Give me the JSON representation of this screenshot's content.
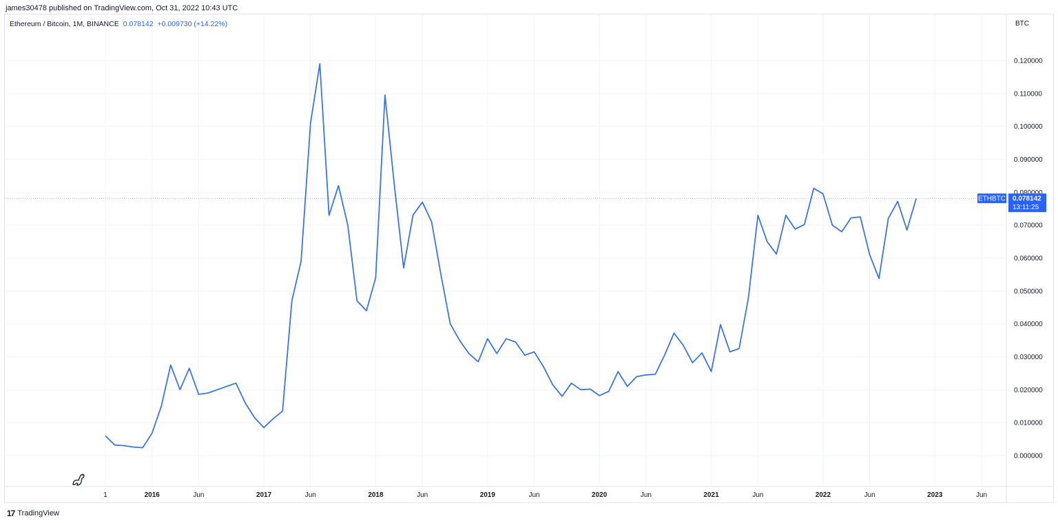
{
  "header": {
    "published_line": "james30478 published on TradingView.com, Oct 31, 2022 10:43 UTC"
  },
  "legend": {
    "symbol": "Ethereum / Bitcoin, 1M, BINANCE",
    "last_value": "0.078142",
    "change": "+0.009730 (+14.22%)"
  },
  "footer": {
    "logo_mark": "17",
    "brand": "TradingView"
  },
  "colors": {
    "line": "#3a74e0",
    "badge": "#2962ff",
    "grid": "#f0f3fa"
  },
  "chart_data": {
    "type": "line",
    "currency_label": "BTC",
    "ylim": [
      -0.009,
      0.128
    ],
    "y_ticks": [
      0,
      0.01,
      0.02,
      0.03,
      0.04,
      0.05,
      0.06,
      0.07,
      0.08,
      0.09,
      0.1,
      0.11,
      0.12
    ],
    "y_tick_labels": [
      "0.000000",
      "0.010000",
      "0.020000",
      "0.030000",
      "0.040000",
      "0.050000",
      "0.060000",
      "0.070000",
      "0.080000",
      "0.090000",
      "0.100000",
      "0.110000",
      "0.120000"
    ],
    "x_ticks": [
      {
        "label": "1",
        "month": 2015.583
      },
      {
        "label": "2016",
        "month": 2016.0
      },
      {
        "label": "Jun",
        "month": 2016.417
      },
      {
        "label": "2017",
        "month": 2017.0
      },
      {
        "label": "Jun",
        "month": 2017.417
      },
      {
        "label": "2018",
        "month": 2018.0
      },
      {
        "label": "Jun",
        "month": 2018.417
      },
      {
        "label": "2019",
        "month": 2019.0
      },
      {
        "label": "Jun",
        "month": 2019.417
      },
      {
        "label": "2020",
        "month": 2020.0
      },
      {
        "label": "Jun",
        "month": 2020.417
      },
      {
        "label": "2021",
        "month": 2021.0
      },
      {
        "label": "Jun",
        "month": 2021.417
      },
      {
        "label": "2022",
        "month": 2022.0
      },
      {
        "label": "Jun",
        "month": 2022.417
      },
      {
        "label": "2023",
        "month": 2023.0
      },
      {
        "label": "Jun",
        "month": 2023.417
      }
    ],
    "series": [
      {
        "x": [
          2015.583,
          2015.667,
          2015.75,
          2015.833,
          2015.917,
          2016.0,
          2016.083,
          2016.167,
          2016.25,
          2016.333,
          2016.417,
          2016.5,
          2016.583,
          2016.667,
          2016.75,
          2016.833,
          2016.917,
          2017.0,
          2017.083,
          2017.167,
          2017.25,
          2017.333,
          2017.417,
          2017.5,
          2017.583,
          2017.667,
          2017.75,
          2017.833,
          2017.917,
          2018.0,
          2018.083,
          2018.167,
          2018.25,
          2018.333,
          2018.417,
          2018.5,
          2018.583,
          2018.667,
          2018.75,
          2018.833,
          2018.917,
          2019.0,
          2019.083,
          2019.167,
          2019.25,
          2019.333,
          2019.417,
          2019.5,
          2019.583,
          2019.667,
          2019.75,
          2019.833,
          2019.917,
          2020.0,
          2020.083,
          2020.167,
          2020.25,
          2020.333,
          2020.417,
          2020.5,
          2020.583,
          2020.667,
          2020.75,
          2020.833,
          2020.917,
          2021.0,
          2021.083,
          2021.167,
          2021.25,
          2021.333,
          2021.417,
          2021.5,
          2021.583,
          2021.667,
          2021.75,
          2021.833,
          2021.917,
          2022.0,
          2022.083,
          2022.167,
          2022.25,
          2022.333,
          2022.417,
          2022.5,
          2022.583,
          2022.667,
          2022.75
        ],
        "values": [
          0.006,
          0.0032,
          0.003,
          0.0026,
          0.0024,
          0.0068,
          0.015,
          0.0275,
          0.02,
          0.0265,
          0.0186,
          0.019,
          0.02,
          0.021,
          0.022,
          0.016,
          0.0115,
          0.0085,
          0.0112,
          0.0135,
          0.047,
          0.059,
          0.101,
          0.119,
          0.073,
          0.082,
          0.07,
          0.047,
          0.044,
          0.054,
          0.1095,
          0.082,
          0.057,
          0.073,
          0.077,
          0.071,
          0.055,
          0.04,
          0.035,
          0.031,
          0.0285,
          0.0355,
          0.031,
          0.0355,
          0.0345,
          0.0305,
          0.0315,
          0.027,
          0.0215,
          0.018,
          0.022,
          0.02,
          0.0202,
          0.0182,
          0.0195,
          0.0255,
          0.021,
          0.024,
          0.0245,
          0.0247,
          0.0305,
          0.0372,
          0.0335,
          0.0282,
          0.0312,
          0.0255,
          0.0398,
          0.0315,
          0.0325,
          0.048,
          0.073,
          0.065,
          0.0612,
          0.073,
          0.0688,
          0.0702,
          0.0812,
          0.0795,
          0.07,
          0.068,
          0.0722,
          0.0725,
          0.061,
          0.0538,
          0.072,
          0.0772,
          0.0685
        ]
      }
    ],
    "last_price": 0.078142,
    "last_point_x": 2022.833,
    "badge_symbol": "ETHBTC",
    "badge_price": "0.078142",
    "badge_countdown": "13:11:25",
    "grid": true,
    "legend_position": "top-left"
  }
}
